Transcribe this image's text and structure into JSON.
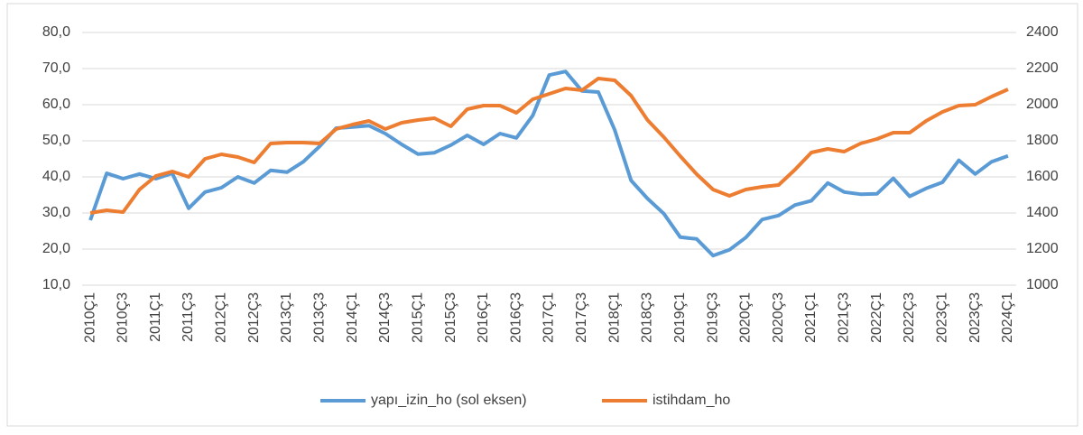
{
  "chart_data": {
    "type": "line",
    "categories": [
      "2010Ç1",
      null,
      "2010Ç3",
      null,
      "2011Ç1",
      null,
      "2011Ç3",
      null,
      "2012Ç1",
      null,
      "2012Ç3",
      null,
      "2013Ç1",
      null,
      "2013Ç3",
      null,
      "2014Ç1",
      null,
      "2014Ç3",
      null,
      "2015Ç1",
      null,
      "2015Ç3",
      null,
      "2016Ç1",
      null,
      "2016Ç3",
      null,
      "2017Ç1",
      null,
      "2017Ç3",
      null,
      "2018Ç1",
      null,
      "2018Ç3",
      null,
      "2019Ç1",
      null,
      "2019Ç3",
      null,
      "2020Ç1",
      null,
      "2020Ç3",
      null,
      "2021Ç1",
      null,
      "2021Ç3",
      null,
      "2022Ç1",
      null,
      "2022Ç3",
      null,
      "2023Ç1",
      null,
      "2023Ç3",
      null,
      "2024Ç1"
    ],
    "series": [
      {
        "name": "yapı_izin_ho (sol eksen)",
        "color": "#5b9bd5",
        "axis": "y",
        "values": [
          28,
          41,
          39.5,
          40.8,
          39.5,
          41,
          31.3,
          35.8,
          37,
          40,
          38.3,
          41.8,
          41.3,
          44.2,
          48.5,
          53.5,
          53.8,
          54.2,
          52,
          49,
          46.3,
          46.7,
          48.8,
          51.5,
          49,
          52,
          50.8,
          57,
          68.2,
          69.2,
          63.8,
          63.5,
          53,
          39,
          34,
          29.8,
          23.3,
          22.8,
          18.2,
          19.8,
          23.2,
          28.2,
          29.3,
          32.2,
          33.4,
          38.3,
          35.8,
          35.2,
          35.3,
          39.6,
          34.6,
          36.8,
          38.5,
          44.6,
          40.8,
          44.2,
          45.8
        ]
      },
      {
        "name": "istihdam_ho",
        "color": "#ed7d31",
        "axis": "y2",
        "values": [
          1400,
          1415,
          1405,
          1530,
          1605,
          1630,
          1600,
          1700,
          1725,
          1710,
          1680,
          1785,
          1790,
          1790,
          1785,
          1865,
          1890,
          1910,
          1865,
          1900,
          1915,
          1925,
          1880,
          1975,
          1995,
          1995,
          1955,
          2030,
          2060,
          2090,
          2080,
          2145,
          2135,
          2050,
          1915,
          1820,
          1715,
          1615,
          1530,
          1495,
          1530,
          1545,
          1555,
          1640,
          1735,
          1755,
          1740,
          1785,
          1810,
          1845,
          1845,
          1910,
          1960,
          1995,
          2000,
          2045,
          2085
        ]
      }
    ],
    "ylim": [
      10,
      80
    ],
    "yticks": [
      {
        "value": 10,
        "label": "10,0"
      },
      {
        "value": 20,
        "label": "20,0"
      },
      {
        "value": 30,
        "label": "30,0"
      },
      {
        "value": 40,
        "label": "40,0"
      },
      {
        "value": 50,
        "label": "50,0"
      },
      {
        "value": 60,
        "label": "60,0"
      },
      {
        "value": 70,
        "label": "70,0"
      },
      {
        "value": 80,
        "label": "80,0"
      }
    ],
    "y2lim": [
      1000,
      2400
    ],
    "y2ticks": [
      1000,
      1200,
      1400,
      1600,
      1800,
      2000,
      2200,
      2400
    ],
    "grid": true,
    "legend": "bottom"
  }
}
